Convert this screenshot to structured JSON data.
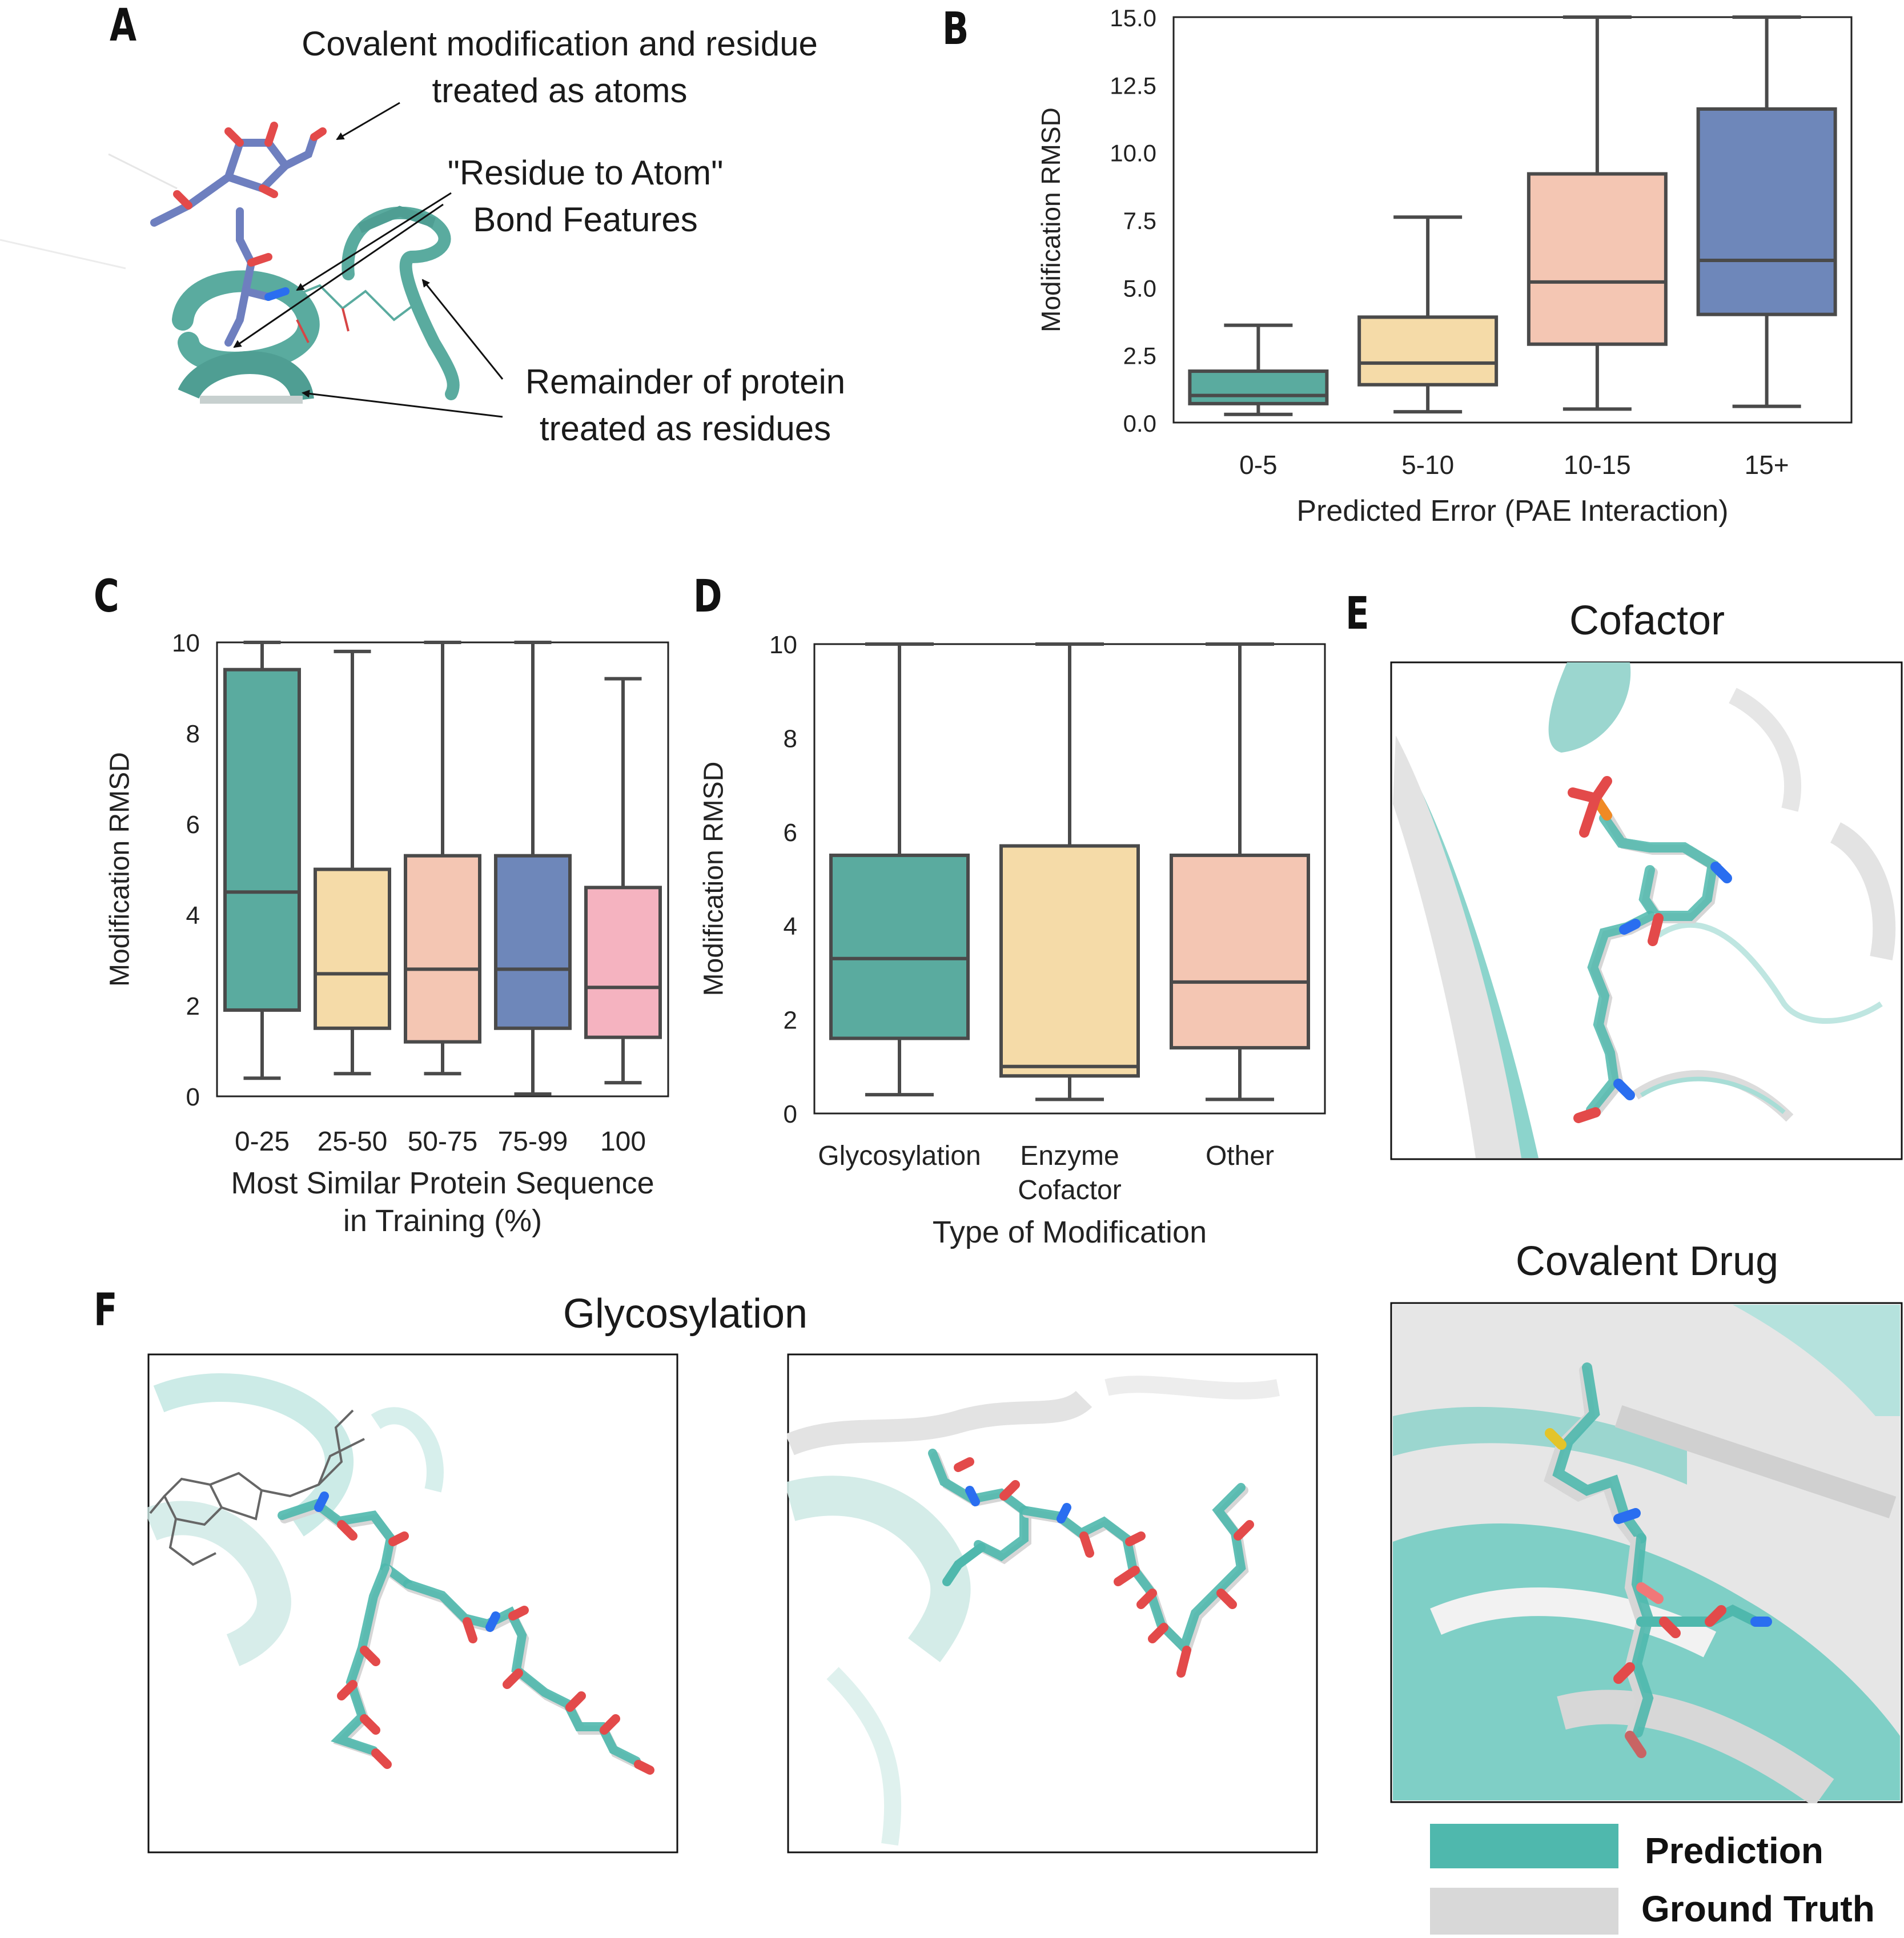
{
  "panels": {
    "a": {
      "label": "A",
      "annotations": {
        "covalent_line1": "Covalent modification and residue",
        "covalent_line2": "treated as atoms",
        "bond_line1": "\"Residue to Atom\"",
        "bond_line2": "Bond Features",
        "remainder_line1": "Remainder of protein",
        "remainder_line2": "treated as residues"
      }
    },
    "b": {
      "label": "B"
    },
    "c": {
      "label": "C"
    },
    "d": {
      "label": "D"
    },
    "e": {
      "label": "E",
      "title_top": "Cofactor",
      "title_bottom": "Covalent Drug"
    },
    "f": {
      "label": "F",
      "title": "Glycosylation"
    }
  },
  "legend": {
    "prediction": "Prediction",
    "ground_truth": "Ground Truth",
    "colors": {
      "prediction": "#4fb8ad",
      "ground_truth": "#d8d8d8"
    }
  },
  "chart_data": [
    {
      "id": "b",
      "type": "box",
      "xlabel": "Predicted Error (PAE Interaction)",
      "ylabel": "Modification RMSD",
      "ylim": [
        0,
        15
      ],
      "yticks": [
        "0.0",
        "2.5",
        "5.0",
        "7.5",
        "10.0",
        "12.5",
        "15.0"
      ],
      "ytick_values": [
        0,
        2.5,
        5,
        7.5,
        10,
        12.5,
        15
      ],
      "categories": [
        "0-5",
        "5-10",
        "10-15",
        "15+"
      ],
      "colors": [
        "#5aab9f",
        "#f5dba8",
        "#f4c6b3",
        "#6e87ba"
      ],
      "boxes": [
        {
          "whislo": 0.3,
          "q1": 0.7,
          "med": 1.0,
          "q3": 1.9,
          "whishi": 3.6
        },
        {
          "whislo": 0.4,
          "q1": 1.4,
          "med": 2.2,
          "q3": 3.9,
          "whishi": 7.6
        },
        {
          "whislo": 0.5,
          "q1": 2.9,
          "med": 5.2,
          "q3": 9.2,
          "whishi": 15.0
        },
        {
          "whislo": 0.6,
          "q1": 4.0,
          "med": 6.0,
          "q3": 11.6,
          "whishi": 15.0
        }
      ]
    },
    {
      "id": "c",
      "type": "box",
      "xlabel": [
        "Most Similar Protein Sequence",
        "in Training (%)"
      ],
      "ylabel": "Modification RMSD",
      "ylim": [
        0,
        10
      ],
      "yticks": [
        "0",
        "2",
        "4",
        "6",
        "8",
        "10"
      ],
      "ytick_values": [
        0,
        2,
        4,
        6,
        8,
        10
      ],
      "categories": [
        "0-25",
        "25-50",
        "50-75",
        "75-99",
        "100"
      ],
      "colors": [
        "#5aab9f",
        "#f5dba8",
        "#f4c6b3",
        "#6e87ba",
        "#f5b3c0"
      ],
      "boxes": [
        {
          "whislo": 0.4,
          "q1": 1.9,
          "med": 4.5,
          "q3": 9.4,
          "whishi": 10.0
        },
        {
          "whislo": 0.5,
          "q1": 1.5,
          "med": 2.7,
          "q3": 5.0,
          "whishi": 9.8
        },
        {
          "whislo": 0.5,
          "q1": 1.2,
          "med": 2.8,
          "q3": 5.3,
          "whishi": 10.0
        },
        {
          "whislo": 0.05,
          "q1": 1.5,
          "med": 2.8,
          "q3": 5.3,
          "whishi": 10.0
        },
        {
          "whislo": 0.3,
          "q1": 1.3,
          "med": 2.4,
          "q3": 4.6,
          "whishi": 9.2
        }
      ]
    },
    {
      "id": "d",
      "type": "box",
      "xlabel": "Type of Modification",
      "ylabel": "Modification RMSD",
      "ylim": [
        0,
        10
      ],
      "yticks": [
        "0",
        "2",
        "4",
        "6",
        "8",
        "10"
      ],
      "ytick_values": [
        0,
        2,
        4,
        6,
        8,
        10
      ],
      "categories": [
        "Glycosylation",
        [
          "Enzyme",
          "Cofactor"
        ],
        "Other"
      ],
      "colors": [
        "#5aab9f",
        "#f5dba8",
        "#f4c6b3"
      ],
      "boxes": [
        {
          "whislo": 0.4,
          "q1": 1.6,
          "med": 3.3,
          "q3": 5.5,
          "whishi": 10.0
        },
        {
          "whislo": 0.3,
          "q1": 0.8,
          "med": 1.0,
          "q3": 5.7,
          "whishi": 10.0
        },
        {
          "whislo": 0.3,
          "q1": 1.4,
          "med": 2.8,
          "q3": 5.5,
          "whishi": 10.0
        }
      ]
    }
  ]
}
